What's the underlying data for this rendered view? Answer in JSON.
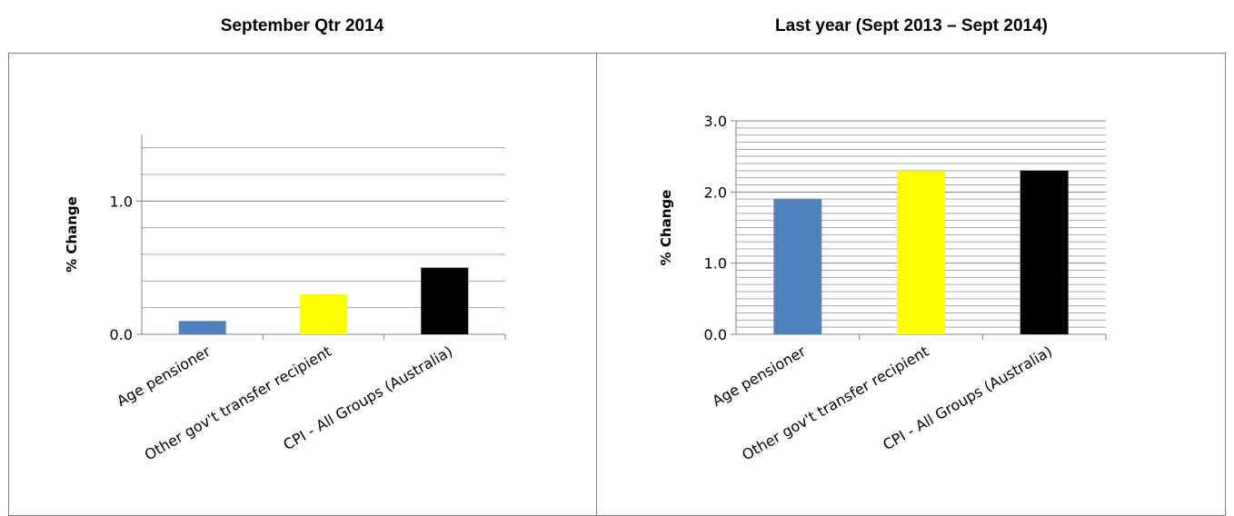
{
  "chart_data": [
    {
      "type": "bar",
      "title": "September Qtr 2014",
      "xlabel": "",
      "ylabel": "% Change",
      "categories": [
        "Age pensioner",
        "Other gov't transfer recipient",
        "CPI - All Groups (Australia)"
      ],
      "values": [
        0.1,
        0.3,
        0.5
      ],
      "colors": [
        "#4f81bd",
        "#ffff00",
        "#000000"
      ],
      "ylim": [
        0,
        1.5
      ],
      "yticks": [
        "0.0",
        "1.0"
      ],
      "grid": true
    },
    {
      "type": "bar",
      "title": "Last year (Sept 2013 – Sept 2014)",
      "xlabel": "",
      "ylabel": "% Change",
      "categories": [
        "Age pensioner",
        "Other gov't transfer recipient",
        "CPI - All Groups (Australia)"
      ],
      "values": [
        1.9,
        2.3,
        2.3
      ],
      "colors": [
        "#4f81bd",
        "#ffff00",
        "#000000"
      ],
      "ylim": [
        0,
        3.0
      ],
      "yticks": [
        "0.0",
        "1.0",
        "2.0",
        "3.0"
      ],
      "grid": true
    }
  ]
}
